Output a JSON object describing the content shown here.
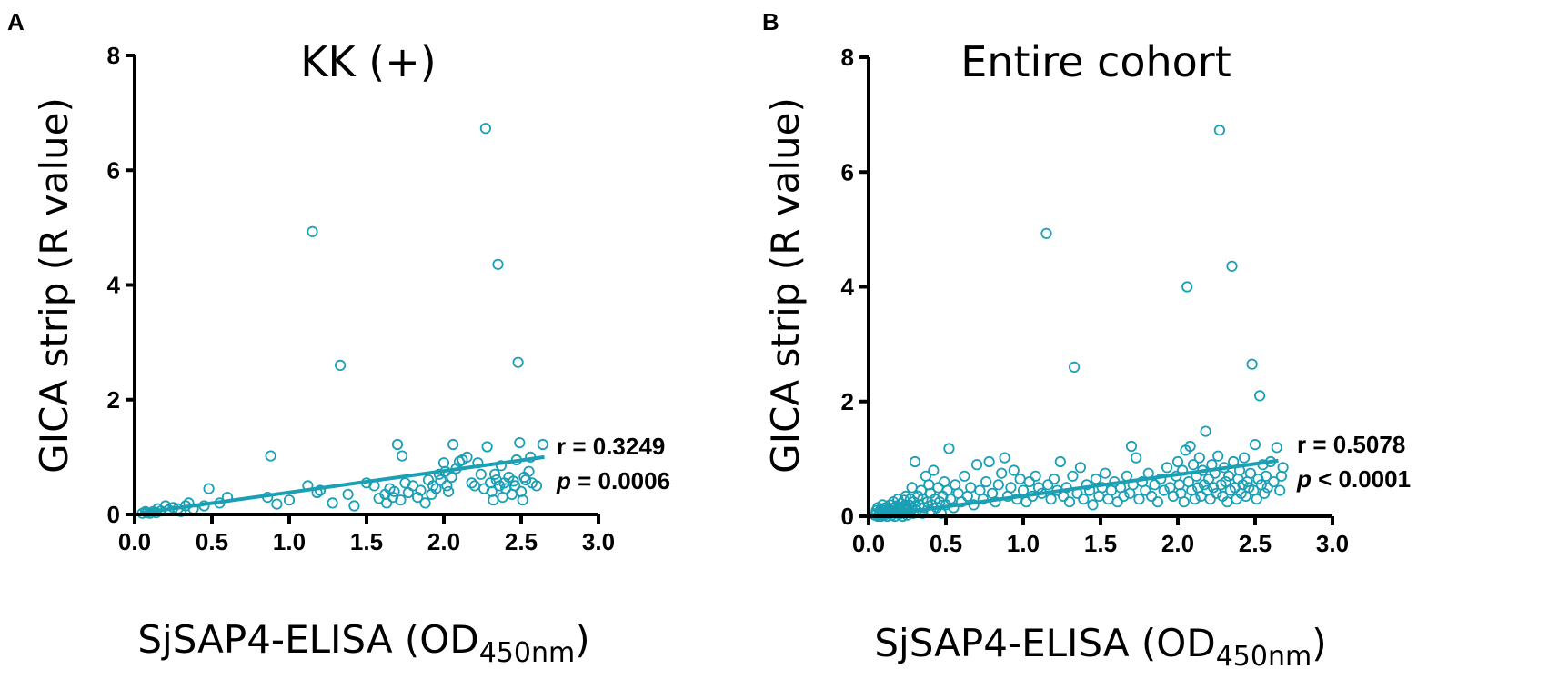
{
  "colors": {
    "points": "#1a9fb5",
    "axis": "#000000"
  },
  "chart_data": [
    {
      "type": "scatter",
      "panel": "A",
      "title": "KK (+)",
      "xlabel_main": "SjSAP4-ELISA (OD",
      "xlabel_sub": "450nm",
      "xlabel_close": ")",
      "ylabel": "GICA strip (R value)",
      "xlim": [
        0,
        3
      ],
      "ylim": [
        0,
        8
      ],
      "x_ticks": [
        "0.0",
        "0.5",
        "1.0",
        "1.5",
        "2.0",
        "2.5",
        "3.0"
      ],
      "x_tick_values": [
        0,
        0.5,
        1.0,
        1.5,
        2.0,
        2.5,
        3.0
      ],
      "y_ticks": [
        "0",
        "2",
        "4",
        "6",
        "8"
      ],
      "y_tick_values": [
        0,
        2,
        4,
        6,
        8
      ],
      "stat_r_label": "r = ",
      "stat_r_value": "0.3249",
      "stat_p_label": "p",
      "stat_p_op": " = ",
      "stat_p_value": "0.0006",
      "fit": {
        "x": [
          0.05,
          2.65
        ],
        "y": [
          0.03,
          1.0
        ]
      },
      "points": [
        [
          0.05,
          0.02
        ],
        [
          0.07,
          0.05
        ],
        [
          0.08,
          0.03
        ],
        [
          0.1,
          0.02
        ],
        [
          0.12,
          0.05
        ],
        [
          0.14,
          0.03
        ],
        [
          0.15,
          0.1
        ],
        [
          0.17,
          0.06
        ],
        [
          0.2,
          0.15
        ],
        [
          0.22,
          0.08
        ],
        [
          0.25,
          0.12
        ],
        [
          0.28,
          0.1
        ],
        [
          0.3,
          0.05
        ],
        [
          0.33,
          0.15
        ],
        [
          0.35,
          0.2
        ],
        [
          0.38,
          0.1
        ],
        [
          0.45,
          0.15
        ],
        [
          0.48,
          0.45
        ],
        [
          0.55,
          0.2
        ],
        [
          0.6,
          0.3
        ],
        [
          0.86,
          0.3
        ],
        [
          0.88,
          1.02
        ],
        [
          0.92,
          0.18
        ],
        [
          1.0,
          0.25
        ],
        [
          1.12,
          0.5
        ],
        [
          1.15,
          4.93
        ],
        [
          1.18,
          0.38
        ],
        [
          1.2,
          0.42
        ],
        [
          1.28,
          0.2
        ],
        [
          1.33,
          2.6
        ],
        [
          1.38,
          0.35
        ],
        [
          1.42,
          0.15
        ],
        [
          1.5,
          0.55
        ],
        [
          1.55,
          0.5
        ],
        [
          1.58,
          0.28
        ],
        [
          1.62,
          0.35
        ],
        [
          1.63,
          0.2
        ],
        [
          1.65,
          0.45
        ],
        [
          1.67,
          0.3
        ],
        [
          1.68,
          0.4
        ],
        [
          1.7,
          1.22
        ],
        [
          1.72,
          0.25
        ],
        [
          1.73,
          1.02
        ],
        [
          1.75,
          0.55
        ],
        [
          1.77,
          0.38
        ],
        [
          1.8,
          0.5
        ],
        [
          1.83,
          0.3
        ],
        [
          1.85,
          0.42
        ],
        [
          1.88,
          0.2
        ],
        [
          1.9,
          0.6
        ],
        [
          1.92,
          0.35
        ],
        [
          1.93,
          0.5
        ],
        [
          1.95,
          0.45
        ],
        [
          1.97,
          0.7
        ],
        [
          1.98,
          0.6
        ],
        [
          2.0,
          0.9
        ],
        [
          2.01,
          0.75
        ],
        [
          2.02,
          0.5
        ],
        [
          2.03,
          0.4
        ],
        [
          2.05,
          0.65
        ],
        [
          2.06,
          1.22
        ],
        [
          2.08,
          0.8
        ],
        [
          2.1,
          0.92
        ],
        [
          2.12,
          0.95
        ],
        [
          2.15,
          1.0
        ],
        [
          2.18,
          0.55
        ],
        [
          2.2,
          0.5
        ],
        [
          2.22,
          0.9
        ],
        [
          2.24,
          0.7
        ],
        [
          2.26,
          0.45
        ],
        [
          2.27,
          6.73
        ],
        [
          2.28,
          1.18
        ],
        [
          2.3,
          0.55
        ],
        [
          2.31,
          0.4
        ],
        [
          2.32,
          0.25
        ],
        [
          2.33,
          0.7
        ],
        [
          2.34,
          0.6
        ],
        [
          2.35,
          4.36
        ],
        [
          2.36,
          0.5
        ],
        [
          2.37,
          0.85
        ],
        [
          2.38,
          0.3
        ],
        [
          2.39,
          0.55
        ],
        [
          2.4,
          0.45
        ],
        [
          2.42,
          0.65
        ],
        [
          2.44,
          0.35
        ],
        [
          2.45,
          0.58
        ],
        [
          2.46,
          0.5
        ],
        [
          2.47,
          0.95
        ],
        [
          2.48,
          2.65
        ],
        [
          2.49,
          1.25
        ],
        [
          2.5,
          0.4
        ],
        [
          2.51,
          0.25
        ],
        [
          2.52,
          0.65
        ],
        [
          2.53,
          0.6
        ],
        [
          2.55,
          0.75
        ],
        [
          2.56,
          1.0
        ],
        [
          2.57,
          0.55
        ],
        [
          2.6,
          0.5
        ],
        [
          2.64,
          1.22
        ]
      ]
    },
    {
      "type": "scatter",
      "panel": "B",
      "title": "Entire cohort",
      "xlabel_main": "SjSAP4-ELISA (OD",
      "xlabel_sub": "450nm",
      "xlabel_close": ")",
      "ylabel": "GICA strip (R value)",
      "xlim": [
        0,
        3
      ],
      "ylim": [
        0,
        8
      ],
      "x_ticks": [
        "0.0",
        "0.5",
        "1.0",
        "1.5",
        "2.0",
        "2.5",
        "3.0"
      ],
      "x_tick_values": [
        0,
        0.5,
        1.0,
        1.5,
        2.0,
        2.5,
        3.0
      ],
      "y_ticks": [
        "0",
        "2",
        "4",
        "6",
        "8"
      ],
      "y_tick_values": [
        0,
        2,
        4,
        6,
        8
      ],
      "stat_r_label": "r = ",
      "stat_r_value": "0.5078",
      "stat_p_label": "p",
      "stat_p_op": " < ",
      "stat_p_value": "0.0001",
      "fit": {
        "x": [
          0.05,
          2.65
        ],
        "y": [
          0.0,
          0.97
        ]
      },
      "points": [
        [
          0.04,
          0.02
        ],
        [
          0.05,
          0.05
        ],
        [
          0.05,
          0.1
        ],
        [
          0.06,
          0.0
        ],
        [
          0.06,
          0.15
        ],
        [
          0.07,
          0.03
        ],
        [
          0.07,
          0.08
        ],
        [
          0.08,
          0.0
        ],
        [
          0.08,
          0.12
        ],
        [
          0.09,
          0.05
        ],
        [
          0.09,
          0.2
        ],
        [
          0.1,
          0.02
        ],
        [
          0.1,
          0.1
        ],
        [
          0.11,
          0.06
        ],
        [
          0.11,
          0.15
        ],
        [
          0.12,
          0.0
        ],
        [
          0.12,
          0.08
        ],
        [
          0.13,
          0.12
        ],
        [
          0.13,
          0.04
        ],
        [
          0.14,
          0.2
        ],
        [
          0.14,
          0.09
        ],
        [
          0.15,
          0.02
        ],
        [
          0.15,
          0.14
        ],
        [
          0.16,
          0.06
        ],
        [
          0.16,
          0.25
        ],
        [
          0.17,
          0.1
        ],
        [
          0.17,
          0.0
        ],
        [
          0.18,
          0.18
        ],
        [
          0.18,
          0.08
        ],
        [
          0.19,
          0.12
        ],
        [
          0.19,
          0.3
        ],
        [
          0.2,
          0.04
        ],
        [
          0.2,
          0.16
        ],
        [
          0.21,
          0.22
        ],
        [
          0.21,
          0.1
        ],
        [
          0.22,
          0.0
        ],
        [
          0.22,
          0.14
        ],
        [
          0.23,
          0.28
        ],
        [
          0.23,
          0.06
        ],
        [
          0.24,
          0.18
        ],
        [
          0.24,
          0.35
        ],
        [
          0.25,
          0.1
        ],
        [
          0.25,
          0.02
        ],
        [
          0.26,
          0.2
        ],
        [
          0.26,
          0.12
        ],
        [
          0.27,
          0.3
        ],
        [
          0.27,
          0.08
        ],
        [
          0.28,
          0.15
        ],
        [
          0.28,
          0.5
        ],
        [
          0.29,
          0.05
        ],
        [
          0.29,
          0.25
        ],
        [
          0.3,
          0.18
        ],
        [
          0.3,
          0.95
        ],
        [
          0.31,
          0.1
        ],
        [
          0.32,
          0.35
        ],
        [
          0.33,
          0.2
        ],
        [
          0.34,
          0.45
        ],
        [
          0.35,
          0.05
        ],
        [
          0.35,
          0.3
        ],
        [
          0.36,
          0.15
        ],
        [
          0.37,
          0.7
        ],
        [
          0.38,
          0.25
        ],
        [
          0.39,
          0.55
        ],
        [
          0.4,
          0.1
        ],
        [
          0.4,
          0.4
        ],
        [
          0.41,
          0.2
        ],
        [
          0.42,
          0.8
        ],
        [
          0.43,
          0.3
        ],
        [
          0.44,
          0.15
        ],
        [
          0.45,
          0.5
        ],
        [
          0.46,
          0.25
        ],
        [
          0.47,
          0.05
        ],
        [
          0.48,
          0.35
        ],
        [
          0.49,
          0.6
        ],
        [
          0.5,
          0.2
        ],
        [
          0.51,
          0.45
        ],
        [
          0.52,
          1.18
        ],
        [
          0.53,
          0.3
        ],
        [
          0.55,
          0.15
        ],
        [
          0.56,
          0.55
        ],
        [
          0.58,
          0.4
        ],
        [
          0.6,
          0.25
        ],
        [
          0.62,
          0.7
        ],
        [
          0.64,
          0.35
        ],
        [
          0.66,
          0.5
        ],
        [
          0.68,
          0.2
        ],
        [
          0.7,
          0.9
        ],
        [
          0.72,
          0.45
        ],
        [
          0.74,
          0.3
        ],
        [
          0.76,
          0.6
        ],
        [
          0.78,
          0.95
        ],
        [
          0.8,
          0.4
        ],
        [
          0.82,
          0.25
        ],
        [
          0.84,
          0.55
        ],
        [
          0.86,
          0.75
        ],
        [
          0.88,
          1.02
        ],
        [
          0.9,
          0.35
        ],
        [
          0.92,
          0.5
        ],
        [
          0.94,
          0.8
        ],
        [
          0.96,
          0.3
        ],
        [
          0.98,
          0.65
        ],
        [
          1.0,
          0.45
        ],
        [
          1.02,
          0.25
        ],
        [
          1.04,
          0.6
        ],
        [
          1.06,
          0.35
        ],
        [
          1.08,
          0.7
        ],
        [
          1.1,
          0.5
        ],
        [
          1.12,
          0.4
        ],
        [
          1.15,
          4.93
        ],
        [
          1.16,
          0.55
        ],
        [
          1.18,
          0.3
        ],
        [
          1.2,
          0.65
        ],
        [
          1.22,
          0.45
        ],
        [
          1.24,
          0.95
        ],
        [
          1.26,
          0.35
        ],
        [
          1.28,
          0.5
        ],
        [
          1.3,
          0.25
        ],
        [
          1.32,
          0.7
        ],
        [
          1.33,
          2.6
        ],
        [
          1.35,
          0.4
        ],
        [
          1.37,
          0.85
        ],
        [
          1.39,
          0.3
        ],
        [
          1.41,
          0.55
        ],
        [
          1.43,
          0.45
        ],
        [
          1.45,
          0.2
        ],
        [
          1.47,
          0.65
        ],
        [
          1.49,
          0.35
        ],
        [
          1.51,
          0.5
        ],
        [
          1.53,
          0.75
        ],
        [
          1.55,
          0.3
        ],
        [
          1.57,
          0.45
        ],
        [
          1.59,
          0.6
        ],
        [
          1.61,
          0.25
        ],
        [
          1.63,
          0.5
        ],
        [
          1.65,
          0.35
        ],
        [
          1.67,
          0.7
        ],
        [
          1.69,
          0.4
        ],
        [
          1.7,
          1.22
        ],
        [
          1.71,
          0.55
        ],
        [
          1.73,
          1.02
        ],
        [
          1.75,
          0.3
        ],
        [
          1.77,
          0.6
        ],
        [
          1.79,
          0.45
        ],
        [
          1.81,
          0.75
        ],
        [
          1.83,
          0.35
        ],
        [
          1.85,
          0.55
        ],
        [
          1.87,
          0.25
        ],
        [
          1.89,
          0.65
        ],
        [
          1.91,
          0.45
        ],
        [
          1.93,
          0.85
        ],
        [
          1.95,
          0.5
        ],
        [
          1.97,
          0.35
        ],
        [
          1.99,
          0.7
        ],
        [
          2.0,
          0.95
        ],
        [
          2.01,
          0.55
        ],
        [
          2.02,
          0.4
        ],
        [
          2.03,
          0.8
        ],
        [
          2.04,
          0.25
        ],
        [
          2.05,
          1.15
        ],
        [
          2.06,
          4.0
        ],
        [
          2.07,
          0.6
        ],
        [
          2.08,
          1.22
        ],
        [
          2.09,
          0.45
        ],
        [
          2.1,
          0.9
        ],
        [
          2.11,
          0.3
        ],
        [
          2.12,
          0.7
        ],
        [
          2.13,
          0.5
        ],
        [
          2.14,
          1.02
        ],
        [
          2.15,
          0.35
        ],
        [
          2.16,
          0.8
        ],
        [
          2.17,
          0.55
        ],
        [
          2.18,
          1.48
        ],
        [
          2.19,
          0.45
        ],
        [
          2.2,
          0.65
        ],
        [
          2.21,
          0.3
        ],
        [
          2.22,
          0.9
        ],
        [
          2.23,
          0.5
        ],
        [
          2.24,
          0.75
        ],
        [
          2.25,
          0.4
        ],
        [
          2.26,
          1.05
        ],
        [
          2.27,
          6.73
        ],
        [
          2.28,
          0.55
        ],
        [
          2.29,
          0.35
        ],
        [
          2.3,
          0.85
        ],
        [
          2.31,
          0.6
        ],
        [
          2.32,
          0.25
        ],
        [
          2.33,
          0.7
        ],
        [
          2.34,
          0.45
        ],
        [
          2.35,
          4.36
        ],
        [
          2.36,
          0.95
        ],
        [
          2.37,
          0.5
        ],
        [
          2.38,
          0.3
        ],
        [
          2.39,
          0.65
        ],
        [
          2.4,
          0.8
        ],
        [
          2.41,
          0.4
        ],
        [
          2.42,
          0.55
        ],
        [
          2.43,
          1.02
        ],
        [
          2.44,
          0.35
        ],
        [
          2.45,
          0.6
        ],
        [
          2.46,
          0.5
        ],
        [
          2.47,
          0.75
        ],
        [
          2.48,
          2.65
        ],
        [
          2.49,
          0.45
        ],
        [
          2.5,
          1.25
        ],
        [
          2.51,
          0.3
        ],
        [
          2.52,
          0.65
        ],
        [
          2.53,
          2.1
        ],
        [
          2.54,
          0.55
        ],
        [
          2.55,
          0.9
        ],
        [
          2.56,
          0.4
        ],
        [
          2.57,
          0.7
        ],
        [
          2.58,
          0.5
        ],
        [
          2.6,
          0.95
        ],
        [
          2.62,
          0.6
        ],
        [
          2.64,
          1.2
        ],
        [
          2.66,
          0.45
        ],
        [
          2.67,
          0.7
        ],
        [
          2.68,
          0.85
        ]
      ]
    }
  ]
}
